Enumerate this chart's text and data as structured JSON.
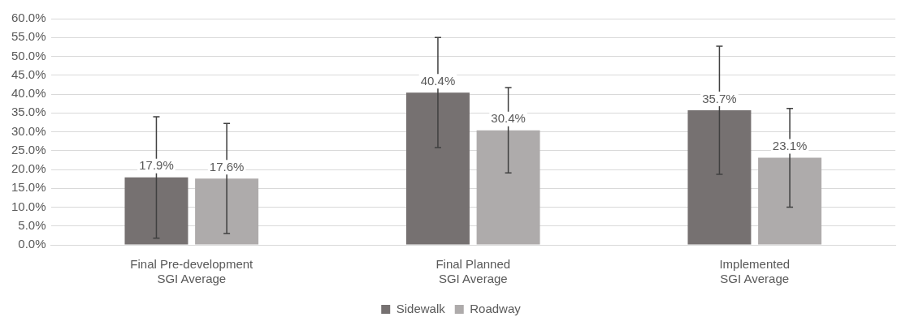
{
  "chart_data": {
    "type": "bar",
    "categories": [
      "Final Pre-development\nSGI Average",
      "Final Planned\nSGI Average",
      "Implemented\nSGI Average"
    ],
    "series": [
      {
        "name": "Sidewalk",
        "color": "#767171",
        "values": [
          17.9,
          40.4,
          35.7
        ],
        "value_labels": [
          "17.9%",
          "40.4%",
          "35.7%"
        ],
        "errors": [
          16.1,
          14.6,
          17.0
        ]
      },
      {
        "name": "Roadway",
        "color": "#aeabab",
        "values": [
          17.6,
          30.4,
          23.1
        ],
        "value_labels": [
          "17.6%",
          "30.4%",
          "23.1%"
        ],
        "errors": [
          14.6,
          11.3,
          13.1
        ]
      }
    ],
    "ylim": [
      0,
      60
    ],
    "yticks": [
      {
        "value": 0,
        "label": "0.0%"
      },
      {
        "value": 5,
        "label": "5.0%"
      },
      {
        "value": 10,
        "label": "10.0%"
      },
      {
        "value": 15,
        "label": "15.0%"
      },
      {
        "value": 20,
        "label": "20.0%"
      },
      {
        "value": 25,
        "label": "25.0%"
      },
      {
        "value": 30,
        "label": "30.0%"
      },
      {
        "value": 35,
        "label": "35.0%"
      },
      {
        "value": 40,
        "label": "40.0%"
      },
      {
        "value": 45,
        "label": "45.0%"
      },
      {
        "value": 50,
        "label": "50.0%"
      },
      {
        "value": 55,
        "label": "55.0%"
      },
      {
        "value": 60,
        "label": "60.0%"
      }
    ],
    "grid": "y",
    "legend": "bottom"
  }
}
